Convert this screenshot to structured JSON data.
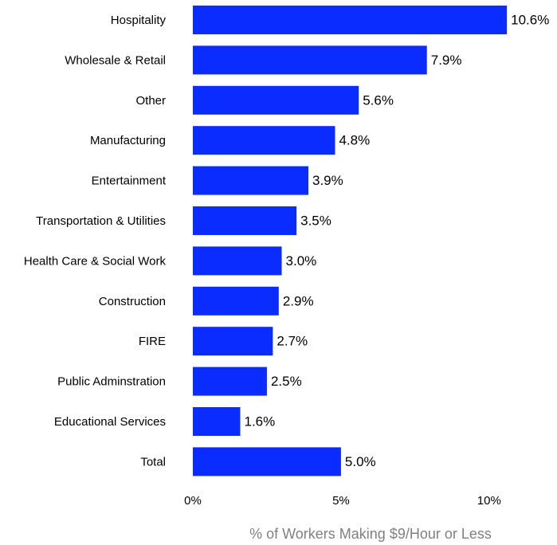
{
  "chart_data": {
    "type": "bar",
    "orientation": "horizontal",
    "xlabel": "% of Workers Making $9/Hour or Less",
    "categories": [
      "Hospitality",
      "Wholesale & Retail",
      "Other",
      "Manufacturing",
      "Entertainment",
      "Transportation & Utilities",
      "Health Care & Social Work",
      "Construction",
      "FIRE",
      "Public Adminstration",
      "Educational Services",
      "Total"
    ],
    "values": [
      10.6,
      7.9,
      5.6,
      4.8,
      3.9,
      3.5,
      3.0,
      2.9,
      2.7,
      2.5,
      1.6,
      5.0
    ],
    "value_labels": [
      "10.6%",
      "7.9%",
      "5.6%",
      "4.8%",
      "3.9%",
      "3.5%",
      "3.0%",
      "2.9%",
      "2.7%",
      "2.5%",
      "1.6%",
      "5.0%"
    ],
    "color": "#0b2cff",
    "xlim": [
      0,
      11
    ],
    "xticks": [
      {
        "value": 0,
        "label": "0%"
      },
      {
        "value": 5,
        "label": "5%"
      },
      {
        "value": 10,
        "label": "10%"
      }
    ],
    "grid": false
  }
}
